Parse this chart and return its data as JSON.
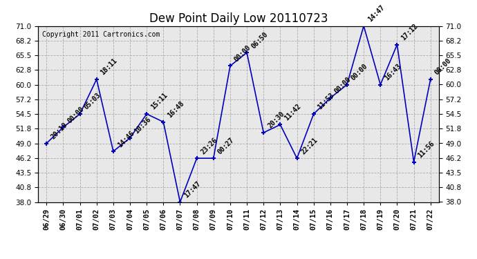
{
  "title": "Dew Point Daily Low 20110723",
  "copyright": "Copyright 2011 Cartronics.com",
  "x_labels": [
    "06/29",
    "06/30",
    "07/01",
    "07/02",
    "07/03",
    "07/04",
    "07/05",
    "07/06",
    "07/07",
    "07/08",
    "07/09",
    "07/10",
    "07/11",
    "07/12",
    "07/13",
    "07/14",
    "07/15",
    "07/16",
    "07/17",
    "07/18",
    "07/19",
    "07/20",
    "07/21",
    "07/22"
  ],
  "y_values": [
    49.0,
    52.0,
    54.5,
    61.0,
    47.5,
    50.0,
    54.5,
    53.0,
    38.0,
    46.2,
    46.2,
    63.5,
    66.0,
    51.0,
    52.5,
    46.2,
    54.5,
    57.5,
    60.0,
    71.0,
    60.0,
    67.5,
    45.5,
    61.0
  ],
  "annotations": [
    "20:19",
    "00:00",
    "05:03",
    "18:11",
    "14:46",
    "10:36",
    "15:11",
    "16:48",
    "17:47",
    "23:26",
    "00:27",
    "00:00",
    "06:50",
    "20:30",
    "11:42",
    "22:21",
    "11:53",
    "00:00",
    "00:00",
    "14:47",
    "16:43",
    "17:12",
    "11:56",
    "00:00"
  ],
  "line_color": "#0000bb",
  "marker_color": "#0000bb",
  "bg_color": "#e8e8e8",
  "grid_color": "#aaaaaa",
  "ylim_min": 38.0,
  "ylim_max": 71.0,
  "yticks": [
    38.0,
    40.8,
    43.5,
    46.2,
    49.0,
    51.8,
    54.5,
    57.2,
    60.0,
    62.8,
    65.5,
    68.2,
    71.0
  ],
  "title_fontsize": 12,
  "annotation_fontsize": 7,
  "copyright_fontsize": 7,
  "tick_fontsize": 7.5
}
